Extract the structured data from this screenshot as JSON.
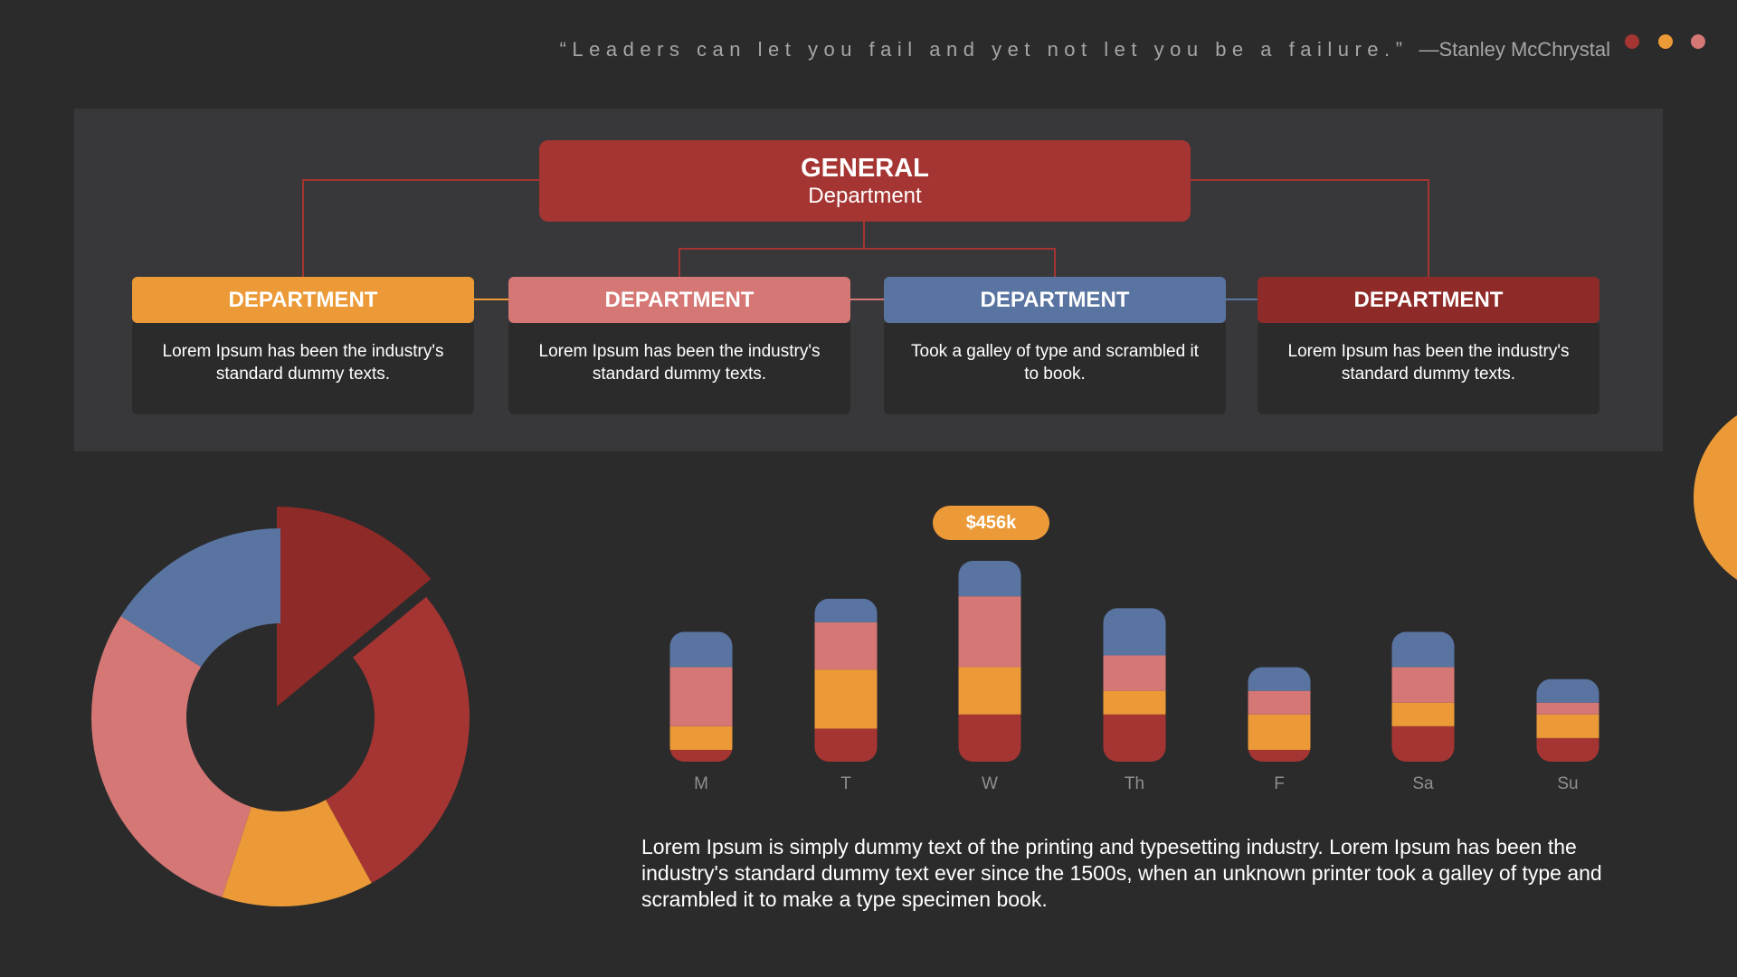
{
  "quote": {
    "text": "“Leaders can let you fail and yet not let you be a failure.”",
    "author": "—Stanley McChrystal"
  },
  "colors": {
    "red": "#a53532",
    "dark_red": "#8e2a27",
    "orange": "#eb9a37",
    "pink": "#d47775",
    "blue": "#5974a0",
    "text_muted": "#a6a6a8",
    "axis_label": "#8f8f92"
  },
  "dots": [
    "red",
    "orange",
    "pink"
  ],
  "org_chart": {
    "general": {
      "title": "GENERAL",
      "subtitle": "Department"
    },
    "departments": [
      {
        "label": "DEPARTMENT",
        "text": "Lorem Ipsum has been the industry's standard dummy texts.",
        "color": "orange"
      },
      {
        "label": "DEPARTMENT",
        "text": "Lorem Ipsum has been the industry's standard dummy texts.",
        "color": "pink"
      },
      {
        "label": "DEPARTMENT",
        "text": "Took a galley of type and scrambled it to book.",
        "color": "blue"
      },
      {
        "label": "DEPARTMENT",
        "text": "Lorem Ipsum has been the industry's standard dummy texts.",
        "color": "dark_red"
      }
    ]
  },
  "chart_data": [
    {
      "type": "pie",
      "subtype": "donut",
      "title": "",
      "slices": [
        {
          "value": 14,
          "color": "dark_red",
          "exploded": true
        },
        {
          "value": 28,
          "color": "red"
        },
        {
          "value": 13,
          "color": "orange"
        },
        {
          "value": 29,
          "color": "pink"
        },
        {
          "value": 16,
          "color": "blue"
        }
      ]
    },
    {
      "type": "bar",
      "subtype": "stacked",
      "title": "",
      "xlabel": "",
      "ylabel": "",
      "categories": [
        "M",
        "T",
        "W",
        "Th",
        "F",
        "Sa",
        "Su"
      ],
      "series": [
        {
          "color": "red",
          "values": [
            10,
            28,
            40,
            40,
            10,
            30,
            20
          ]
        },
        {
          "color": "orange",
          "values": [
            20,
            50,
            40,
            20,
            30,
            20,
            20
          ]
        },
        {
          "color": "pink",
          "values": [
            50,
            40,
            60,
            30,
            20,
            30,
            10
          ]
        },
        {
          "color": "blue",
          "values": [
            30,
            20,
            30,
            40,
            20,
            30,
            20
          ]
        }
      ],
      "ylim": [
        0,
        170
      ],
      "grid": false,
      "legend": "none",
      "highlight": {
        "category": "W",
        "label": "$456k",
        "color": "orange"
      }
    }
  ],
  "body_text": "Lorem Ipsum is simply dummy text of the printing and typesetting industry. Lorem Ipsum has been the industry's standard dummy text ever since the 1500s, when an unknown printer took a galley of type and scrambled it to make a type specimen book."
}
